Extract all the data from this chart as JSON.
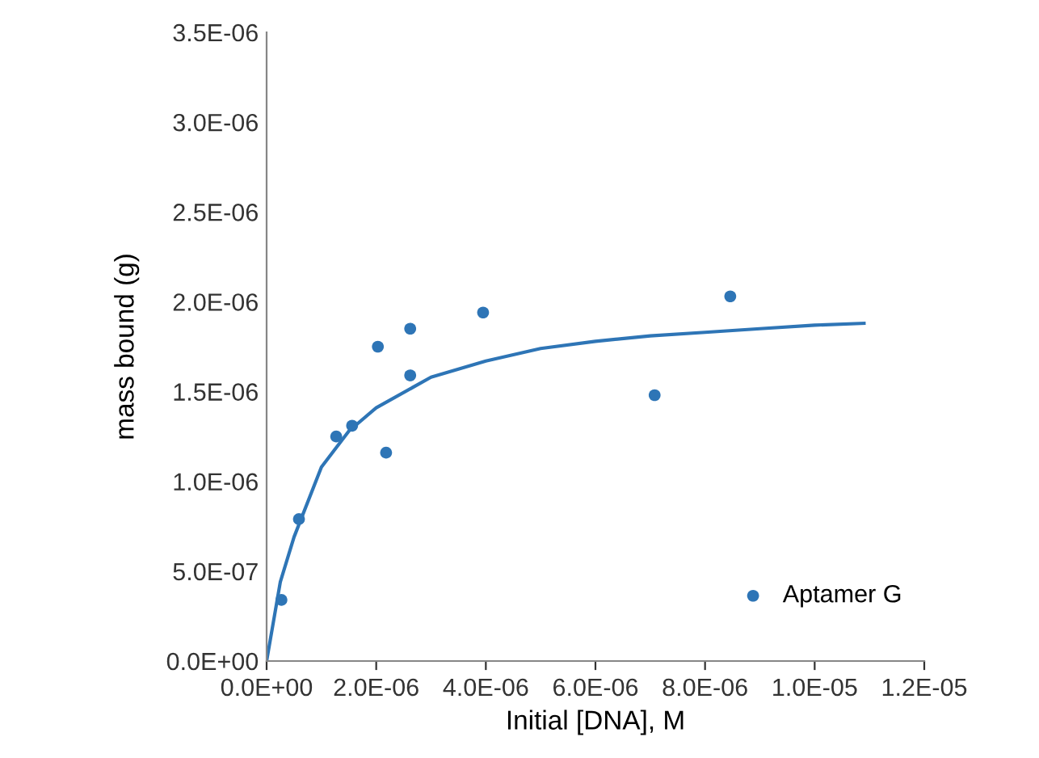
{
  "chart_data": {
    "type": "scatter",
    "xlabel": "Initial [DNA], M",
    "ylabel": "mass bound (g)",
    "xlim": [
      0,
      1.2e-05
    ],
    "ylim": [
      0,
      3.5e-06
    ],
    "xticks": [
      {
        "value": 0,
        "label": "0.0E+00"
      },
      {
        "value": 2e-06,
        "label": "2.0E-06"
      },
      {
        "value": 4e-06,
        "label": "4.0E-06"
      },
      {
        "value": 6e-06,
        "label": "6.0E-06"
      },
      {
        "value": 8e-06,
        "label": "8.0E-06"
      },
      {
        "value": 1e-05,
        "label": "1.0E-05"
      },
      {
        "value": 1.2e-05,
        "label": "1.2E-05"
      }
    ],
    "yticks": [
      {
        "value": 0,
        "label": "0.0E+00"
      },
      {
        "value": 5e-07,
        "label": "5.0E-07"
      },
      {
        "value": 1e-06,
        "label": "1.0E-06"
      },
      {
        "value": 1.5e-06,
        "label": "1.5E-06"
      },
      {
        "value": 2e-06,
        "label": "2.0E-06"
      },
      {
        "value": 2.5e-06,
        "label": "2.5E-06"
      },
      {
        "value": 3e-06,
        "label": "3.0E-06"
      },
      {
        "value": 3.5e-06,
        "label": "3.5E-06"
      }
    ],
    "grid": false,
    "legend": "bottom right",
    "series": [
      {
        "name": "Aptamer G",
        "marker": "circle",
        "color": "#2e75b6",
        "x": [
          2.7e-07,
          5.9e-07,
          1.27e-06,
          1.56e-06,
          2.03e-06,
          2.18e-06,
          2.62e-06,
          2.62e-06,
          3.95e-06,
          7.08e-06,
          8.46e-06
        ],
        "values": [
          3.4e-07,
          7.9e-07,
          1.25e-06,
          1.31e-06,
          1.75e-06,
          1.16e-06,
          1.85e-06,
          1.59e-06,
          1.94e-06,
          1.48e-06,
          2.03e-06
        ]
      },
      {
        "type": "line",
        "marker": "none",
        "color": "#2e75b6",
        "x": [
          0,
          2.5e-07,
          5e-07,
          1e-06,
          1.5e-06,
          2e-06,
          3e-06,
          4e-06,
          5e-06,
          6e-06,
          7e-06,
          8e-06,
          9e-06,
          1e-05,
          1.09e-05
        ],
        "values": [
          0,
          4.4e-07,
          6.9e-07,
          1.08e-06,
          1.28e-06,
          1.41e-06,
          1.58e-06,
          1.67e-06,
          1.74e-06,
          1.78e-06,
          1.81e-06,
          1.83e-06,
          1.85e-06,
          1.87e-06,
          1.88e-06
        ]
      }
    ]
  }
}
